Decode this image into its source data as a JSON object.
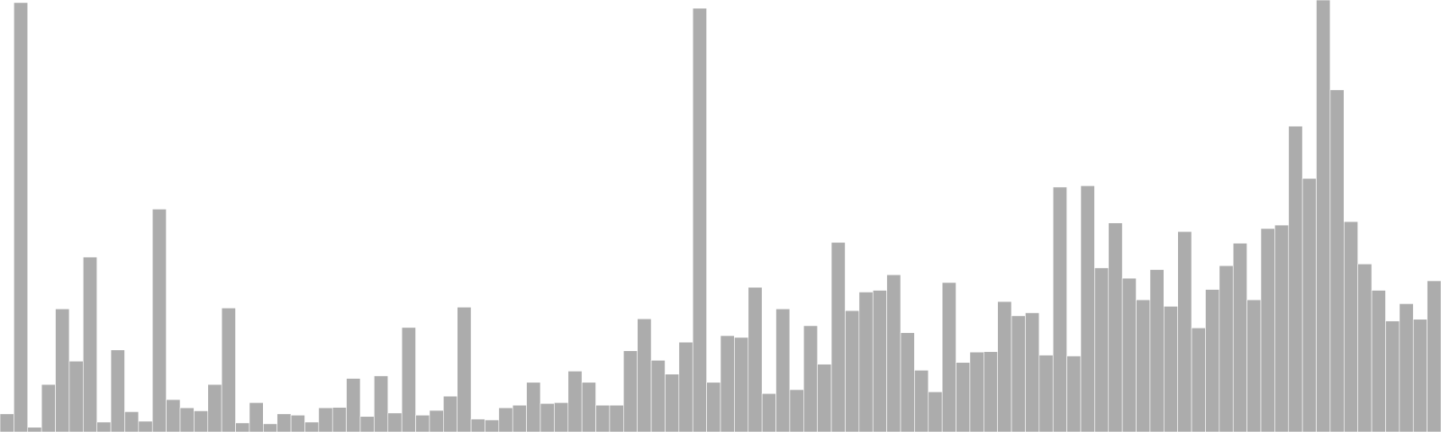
{
  "chart_data": {
    "type": "bar",
    "title": "",
    "xlabel": "",
    "ylabel": "",
    "grid": false,
    "legend": "none",
    "ylim": [
      0,
      100
    ],
    "bar_color": "#acacac",
    "bar_edge_color": "#ffffff",
    "values": [
      4.2,
      99.4,
      1.1,
      11.0,
      28.5,
      16.4,
      40.5,
      2.3,
      19.0,
      4.7,
      2.5,
      51.6,
      7.5,
      5.6,
      4.9,
      11.0,
      28.7,
      2.1,
      6.8,
      1.9,
      4.2,
      3.9,
      2.3,
      5.6,
      5.7,
      12.4,
      3.6,
      13.0,
      4.4,
      24.2,
      3.9,
      5.0,
      8.3,
      28.9,
      3.0,
      2.8,
      5.6,
      6.2,
      11.5,
      6.6,
      6.8,
      14.1,
      11.5,
      6.2,
      6.2,
      18.8,
      26.2,
      16.6,
      13.4,
      20.8,
      98.1,
      11.5,
      22.3,
      21.9,
      33.5,
      8.9,
      28.5,
      9.8,
      24.6,
      15.7,
      43.9,
      28.1,
      32.4,
      32.8,
      36.4,
      23.0,
      14.3,
      9.3,
      34.6,
      16.1,
      18.5,
      18.6,
      30.2,
      26.9,
      27.6,
      17.8,
      56.7,
      17.6,
      57.0,
      38.0,
      48.4,
      35.6,
      30.6,
      37.6,
      29.1,
      46.4,
      24.1,
      33.0,
      38.5,
      43.7,
      30.6,
      47.1,
      47.9,
      70.8,
      58.7,
      100.0,
      79.2,
      48.7,
      38.9,
      32.8,
      25.7,
      29.7,
      26.1,
      35.0
    ]
  }
}
